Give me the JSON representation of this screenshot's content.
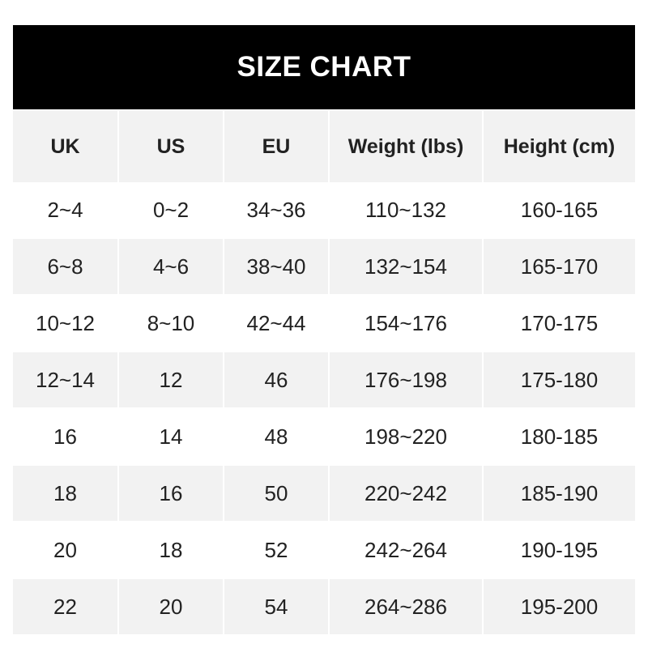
{
  "title": "SIZE CHART",
  "columns": [
    "UK",
    "US",
    "EU",
    "Weight (lbs)",
    "Height (cm)"
  ],
  "rows": [
    [
      "2~4",
      "0~2",
      "34~36",
      "110~132",
      "160-165"
    ],
    [
      "6~8",
      "4~6",
      "38~40",
      "132~154",
      "165-170"
    ],
    [
      "10~12",
      "8~10",
      "42~44",
      "154~176",
      "170-175"
    ],
    [
      "12~14",
      "12",
      "46",
      "176~198",
      "175-180"
    ],
    [
      "16",
      "14",
      "48",
      "198~220",
      "180-185"
    ],
    [
      "18",
      "16",
      "50",
      "220~242",
      "185-190"
    ],
    [
      "20",
      "18",
      "52",
      "242~264",
      "190-195"
    ],
    [
      "22",
      "20",
      "54",
      "264~286",
      "195-200"
    ]
  ],
  "colors": {
    "title_bg": "#000000",
    "stripe": "#f2f2f2",
    "text": "#222222"
  }
}
